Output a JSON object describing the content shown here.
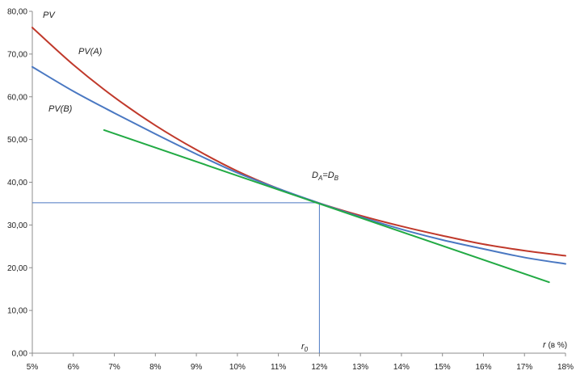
{
  "chart_data": {
    "type": "line",
    "title": "",
    "xlabel": "r (в %)",
    "ylabel": "",
    "xlim": [
      5,
      18
    ],
    "ylim": [
      0,
      80
    ],
    "x_ticks": [
      "5%",
      "6%",
      "7%",
      "8%",
      "9%",
      "10%",
      "11%",
      "12%",
      "13%",
      "14%",
      "15%",
      "16%",
      "17%",
      "18%"
    ],
    "y_ticks": [
      "0,00",
      "10,00",
      "20,00",
      "30,00",
      "40,00",
      "50,00",
      "60,00",
      "70,00",
      "80,00"
    ],
    "grid": false,
    "legend": "none",
    "series": [
      {
        "name": "PV(A)",
        "color": "#c0392b",
        "x": [
          5,
          6,
          7,
          8,
          9,
          10,
          11,
          12,
          13,
          14,
          15,
          16,
          17,
          18
        ],
        "y": [
          76.2,
          67.5,
          59.9,
          53.3,
          47.6,
          42.6,
          38.5,
          35.1,
          32.2,
          29.7,
          27.5,
          25.5,
          24.0,
          22.8
        ]
      },
      {
        "name": "PV(B)",
        "color": "#4a78c2",
        "x": [
          5,
          6,
          7,
          8,
          9,
          10,
          11,
          12,
          13,
          14,
          15,
          16,
          17,
          18
        ],
        "y": [
          67.0,
          61.3,
          56.2,
          51.3,
          46.6,
          42.2,
          38.5,
          35.1,
          31.9,
          29.0,
          26.5,
          24.4,
          22.4,
          20.9
        ]
      },
      {
        "name": "",
        "color": "#22aa44",
        "x": [
          6.75,
          17.6
        ],
        "y": [
          52.2,
          16.6
        ]
      }
    ],
    "reference": {
      "x": 12,
      "y": 35.2,
      "color": "#4a78c2"
    },
    "annotations": {
      "pv": "PV",
      "pv_a": "PV(A)",
      "pv_b": "PV(B)",
      "d_main": "D",
      "d_sub_a": "A",
      "d_eq": "=D",
      "d_sub_b": "B",
      "r0_main": "r",
      "r0_sub": "0",
      "r_axis_main": "r",
      "r_axis_unit": " (в %)"
    }
  }
}
